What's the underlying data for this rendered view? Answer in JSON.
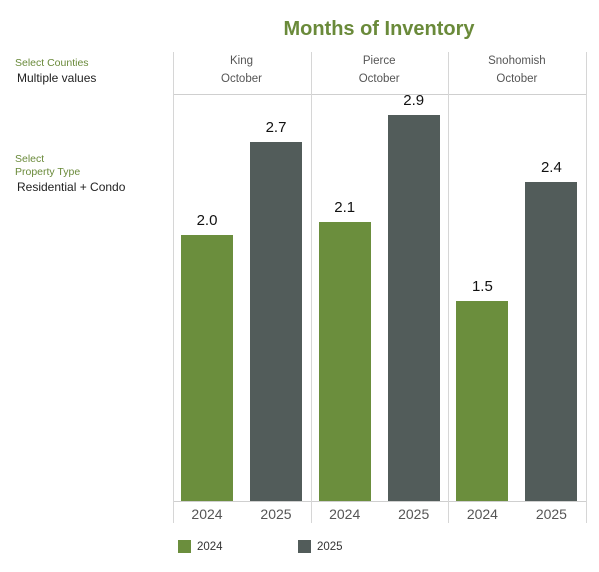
{
  "title": "Months of Inventory",
  "filters": [
    {
      "label": "Select Counties",
      "value": "Multiple values"
    },
    {
      "label": "Select\nProperty Type",
      "value": "Residential + Condo"
    }
  ],
  "colors": {
    "2024": "#6b8e3d",
    "2025": "#525c5a",
    "accent": "#6a8a3a"
  },
  "chart_data": {
    "type": "bar",
    "title": "Months of Inventory",
    "panels": [
      {
        "county": "King",
        "month": "October",
        "values": [
          2.0,
          2.7
        ],
        "labels": [
          "2.0",
          "2.7"
        ]
      },
      {
        "county": "Pierce",
        "month": "October",
        "values": [
          2.1,
          2.9
        ],
        "labels": [
          "2.1",
          "2.9"
        ]
      },
      {
        "county": "Snohomish",
        "month": "October",
        "values": [
          1.5,
          2.4
        ],
        "labels": [
          "1.5",
          "2.4"
        ]
      }
    ],
    "categories": [
      "2024",
      "2025"
    ],
    "series": [
      {
        "name": "2024"
      },
      {
        "name": "2025"
      }
    ],
    "ylim": [
      0,
      3.3
    ],
    "legend": "bottom"
  }
}
